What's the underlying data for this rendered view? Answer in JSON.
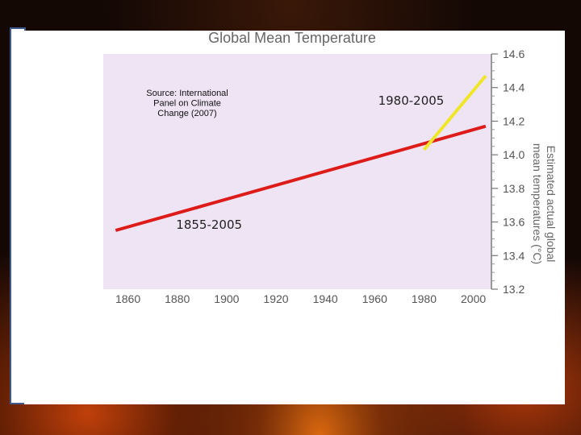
{
  "chart_data": {
    "type": "line",
    "title": "Global Mean Temperature",
    "ylabel": "Estimated actual global mean temperatures (°C)",
    "xlabel": "",
    "xlim": [
      1850,
      2007
    ],
    "ylim": [
      13.2,
      14.6
    ],
    "x_ticks": [
      "1860",
      "1880",
      "1900",
      "1920",
      "1940",
      "1960",
      "1980",
      "2000"
    ],
    "y_ticks": [
      "13.2",
      "13.4",
      "13.6",
      "13.8",
      "14.0",
      "14.2",
      "14.4",
      "14.6"
    ],
    "source_note": [
      "Source: International",
      "Panel on Climate",
      "Change (2007)"
    ],
    "series": [
      {
        "label": "1855-2005",
        "x": [
          1855,
          2005
        ],
        "y": [
          13.55,
          14.17
        ],
        "color": "#dd1c1a"
      },
      {
        "label": "1980-2005",
        "x": [
          1980,
          2005
        ],
        "y": [
          14.03,
          14.47
        ],
        "color": "#f0e628"
      }
    ],
    "plot_background": "#efe4f4"
  }
}
